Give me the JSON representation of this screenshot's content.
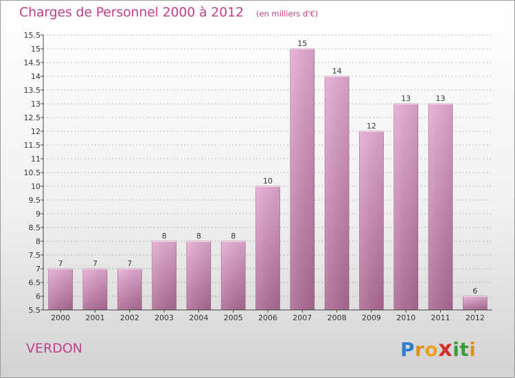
{
  "title": "Charges de Personnel 2000 à 2012",
  "subtitle": "(en milliers d'€)",
  "place": "VERDON",
  "logo": {
    "letters": [
      "P",
      "r",
      "o",
      "x",
      "i",
      "t",
      "i"
    ],
    "colors": [
      "#2f7fd0",
      "#e0901c",
      "#e9a11e",
      "#d23030",
      "#3a9a3c",
      "#3a9a3c",
      "#e0901c"
    ]
  },
  "colors": {
    "bar": "#dc9cc8",
    "bar_dark": "#a8608c",
    "accent": "#c0408a",
    "grid": "#7a7a7a"
  },
  "chart_data": {
    "type": "bar",
    "categories": [
      "2000",
      "2001",
      "2002",
      "2003",
      "2004",
      "2005",
      "2006",
      "2007",
      "2008",
      "2009",
      "2010",
      "2011",
      "2012"
    ],
    "values": [
      7,
      7,
      7,
      8,
      8,
      8,
      10,
      15,
      14,
      12,
      13,
      13,
      6
    ],
    "title": "Charges de Personnel 2000 à 2012",
    "ylabel": "(en milliers d'€)",
    "ylim": [
      5.5,
      15.5
    ],
    "yticks": [
      "5.5",
      "6",
      "6.5",
      "7",
      "7.5",
      "8",
      "8.5",
      "9",
      "9.5",
      "10",
      "10.5",
      "11",
      "11.5",
      "12",
      "12.5",
      "13",
      "13.5",
      "14",
      "14.5",
      "15",
      "15.5"
    ],
    "grid": true,
    "legend": "none"
  }
}
